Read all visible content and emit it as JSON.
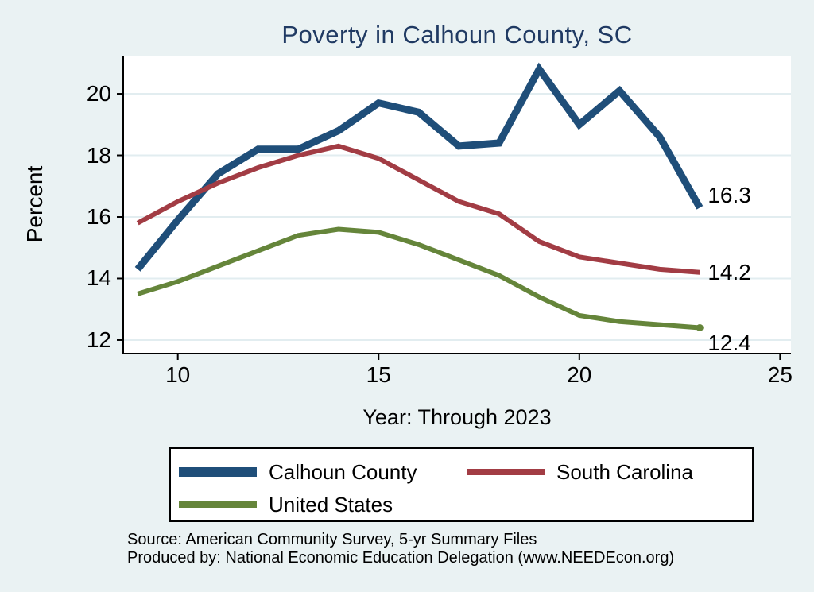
{
  "title": "Poverty in Calhoun County, SC",
  "source_line1": "Source: American Community Survey, 5-yr Summary Files",
  "source_line2": "Produced by: National Economic Education Delegation (www.NEEDEcon.org)",
  "colors": {
    "background": "#eaf2f3",
    "plot_background": "#ffffff",
    "gridline": "#e2edf0",
    "axis": "#000000",
    "title": "#203a63",
    "calhoun_county": "#1f4e79",
    "south_carolina": "#a23c44",
    "united_states": "#65853a"
  },
  "chart_data": {
    "type": "line",
    "title": "Poverty in Calhoun County, SC",
    "xlabel": "Year: Through 2023",
    "ylabel": "Percent",
    "x": [
      9,
      10,
      11,
      12,
      13,
      14,
      15,
      16,
      17,
      18,
      19,
      20,
      21,
      22,
      23
    ],
    "series": [
      {
        "name": "Calhoun County",
        "color": "#1f4e79",
        "line_width": 9,
        "values": [
          14.3,
          15.9,
          17.4,
          18.2,
          18.2,
          18.8,
          19.7,
          19.4,
          18.3,
          18.4,
          20.8,
          19.0,
          20.1,
          18.6,
          16.3
        ],
        "end_label": "16.3",
        "end_marker": false
      },
      {
        "name": "South Carolina",
        "color": "#a23c44",
        "line_width": 6,
        "values": [
          15.8,
          16.5,
          17.1,
          17.6,
          18.0,
          18.3,
          17.9,
          17.2,
          16.5,
          16.1,
          15.2,
          14.7,
          14.5,
          14.3,
          14.2
        ],
        "end_label": "14.2",
        "end_marker": false
      },
      {
        "name": "United States",
        "color": "#65853a",
        "line_width": 6,
        "values": [
          13.5,
          13.9,
          14.4,
          14.9,
          15.4,
          15.6,
          15.5,
          15.1,
          14.6,
          14.1,
          13.4,
          12.8,
          12.6,
          12.5,
          12.4
        ],
        "end_label": "12.4",
        "end_marker": true
      }
    ],
    "xticks": [
      10,
      15,
      20,
      25
    ],
    "yticks": [
      20,
      18,
      16,
      14,
      12
    ],
    "xlim": [
      8.64,
      25.27
    ],
    "ylim": [
      11.56,
      21.24
    ],
    "grid": "horizontal",
    "legend_position": "bottom"
  }
}
